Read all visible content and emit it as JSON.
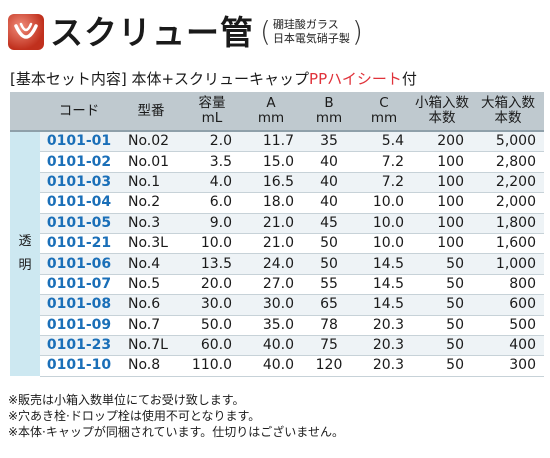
{
  "title": {
    "main": "スクリュー管",
    "sub_line1": "硼珪酸ガラス",
    "sub_line2": "日本電気硝子製"
  },
  "basic_set": {
    "prefix": "[基本セット内容] 本体+スクリューキャップ",
    "highlight": "PPハイシート",
    "suffix": "付"
  },
  "table": {
    "headers": [
      {
        "l1": "",
        "l2": ""
      },
      {
        "l1": "コード",
        "l2": ""
      },
      {
        "l1": "型番",
        "l2": ""
      },
      {
        "l1": "容量",
        "l2": "mL"
      },
      {
        "l1": "A",
        "l2": "mm"
      },
      {
        "l1": "B",
        "l2": "mm"
      },
      {
        "l1": "C",
        "l2": "mm"
      },
      {
        "l1": "小箱入数",
        "l2": "本数"
      },
      {
        "l1": "大箱入数",
        "l2": "本数"
      }
    ],
    "group_label": [
      "透",
      "明"
    ],
    "rows": [
      [
        "0101-01",
        "No.02",
        "2.0",
        "11.7",
        "35",
        "5.4",
        "200",
        "5,000"
      ],
      [
        "0101-02",
        "No.01",
        "3.5",
        "15.0",
        "40",
        "7.2",
        "100",
        "2,800"
      ],
      [
        "0101-03",
        "No.1",
        "4.0",
        "16.5",
        "40",
        "7.2",
        "100",
        "2,200"
      ],
      [
        "0101-04",
        "No.2",
        "6.0",
        "18.0",
        "40",
        "10.0",
        "100",
        "2,000"
      ],
      [
        "0101-05",
        "No.3",
        "9.0",
        "21.0",
        "45",
        "10.0",
        "100",
        "1,800"
      ],
      [
        "0101-21",
        "No.3L",
        "10.0",
        "21.0",
        "50",
        "10.0",
        "100",
        "1,600"
      ],
      [
        "0101-06",
        "No.4",
        "13.5",
        "24.0",
        "50",
        "14.5",
        "50",
        "1,000"
      ],
      [
        "0101-07",
        "No.5",
        "20.0",
        "27.0",
        "55",
        "14.5",
        "50",
        "800"
      ],
      [
        "0101-08",
        "No.6",
        "30.0",
        "30.0",
        "65",
        "14.5",
        "50",
        "600"
      ],
      [
        "0101-09",
        "No.7",
        "50.0",
        "35.0",
        "78",
        "20.3",
        "50",
        "500"
      ],
      [
        "0101-23",
        "No.7L",
        "60.0",
        "40.0",
        "75",
        "20.3",
        "50",
        "400"
      ],
      [
        "0101-10",
        "No.8",
        "110.0",
        "40.0",
        "120",
        "20.3",
        "50",
        "300"
      ]
    ]
  },
  "notes": [
    "※販売は小箱入数単位にてお受け致します。",
    "※穴あき栓·ドロップ栓は使用不可となります。",
    "※本体·キャップが同梱されています。仕切りはございません。"
  ],
  "colors": {
    "code_text": "#1a6fb8",
    "highlight_red": "#e0323a",
    "header_bg": "#bfc9cf",
    "group_bg": "#cde8f1"
  }
}
